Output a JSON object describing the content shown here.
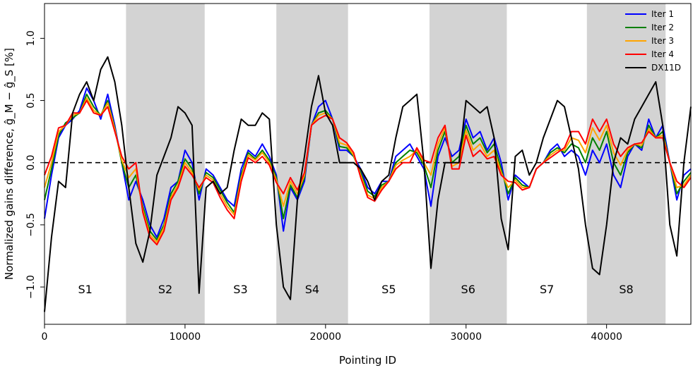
{
  "chart_data": {
    "type": "line",
    "title": "",
    "xlabel": "Pointing ID",
    "ylabel": "Normalized gains difference, ĝ_M − ĝ_S [%]",
    "xlim": [
      0,
      46000
    ],
    "ylim": [
      -1.3,
      1.28
    ],
    "xticks": [
      0,
      10000,
      20000,
      30000,
      40000
    ],
    "xtick_labels": [
      "0",
      "10000",
      "20000",
      "30000",
      "40000"
    ],
    "yticks": [
      -1.0,
      -0.5,
      0.0,
      0.5,
      1.0
    ],
    "ytick_labels": [
      "−1.0",
      "−0.5",
      "0.0",
      "0.5",
      "1.0"
    ],
    "grid": false,
    "legend_position": "top-right",
    "reference_line": {
      "y": 0.0,
      "style": "dashed",
      "color": "#000000"
    },
    "segments": [
      {
        "label": "S1",
        "x0": 0,
        "x1": 5800,
        "shaded": false
      },
      {
        "label": "S2",
        "x0": 5800,
        "x1": 11400,
        "shaded": true
      },
      {
        "label": "S3",
        "x0": 11400,
        "x1": 16500,
        "shaded": false
      },
      {
        "label": "S4",
        "x0": 16500,
        "x1": 21600,
        "shaded": true
      },
      {
        "label": "S5",
        "x0": 21600,
        "x1": 27400,
        "shaded": false
      },
      {
        "label": "S6",
        "x0": 27400,
        "x1": 32900,
        "shaded": true
      },
      {
        "label": "S7",
        "x0": 32900,
        "x1": 38600,
        "shaded": false
      },
      {
        "label": "S8",
        "x0": 38600,
        "x1": 44200,
        "shaded": true
      }
    ],
    "shade_color": "#d3d3d3",
    "x": [
      0,
      500,
      1000,
      1500,
      2000,
      2500,
      3000,
      3500,
      4000,
      4500,
      5000,
      5500,
      6000,
      6500,
      7000,
      7500,
      8000,
      8500,
      9000,
      9500,
      10000,
      10500,
      11000,
      11500,
      12000,
      12500,
      13000,
      13500,
      14000,
      14500,
      15000,
      15500,
      16000,
      16500,
      17000,
      17500,
      18000,
      18500,
      19000,
      19500,
      20000,
      20500,
      21000,
      21500,
      22000,
      22500,
      23000,
      23500,
      24000,
      24500,
      25000,
      25500,
      26000,
      26500,
      27000,
      27500,
      28000,
      28500,
      29000,
      29500,
      30000,
      30500,
      31000,
      31500,
      32000,
      32500,
      33000,
      33500,
      34000,
      34500,
      35000,
      35500,
      36000,
      36500,
      37000,
      37500,
      38000,
      38500,
      39000,
      39500,
      40000,
      40500,
      41000,
      41500,
      42000,
      42500,
      43000,
      43500,
      44000,
      44500,
      45000,
      45500,
      46000
    ],
    "series": [
      {
        "name": "Iter 1",
        "color": "#0000ff",
        "values": [
          -0.45,
          -0.1,
          0.2,
          0.3,
          0.35,
          0.42,
          0.6,
          0.5,
          0.35,
          0.55,
          0.3,
          0.0,
          -0.3,
          -0.15,
          -0.3,
          -0.5,
          -0.6,
          -0.45,
          -0.2,
          -0.15,
          0.1,
          0.0,
          -0.3,
          -0.05,
          -0.1,
          -0.2,
          -0.3,
          -0.35,
          -0.05,
          0.1,
          0.05,
          0.15,
          0.05,
          -0.1,
          -0.55,
          -0.2,
          -0.3,
          -0.15,
          0.3,
          0.45,
          0.5,
          0.35,
          0.1,
          0.1,
          0.05,
          -0.05,
          -0.2,
          -0.25,
          -0.15,
          -0.15,
          0.05,
          0.1,
          0.15,
          0.05,
          -0.05,
          -0.35,
          0.05,
          0.2,
          0.05,
          0.1,
          0.35,
          0.2,
          0.25,
          0.1,
          0.2,
          0.0,
          -0.3,
          -0.1,
          -0.15,
          -0.2,
          -0.05,
          0.0,
          0.1,
          0.15,
          0.05,
          0.1,
          0.05,
          -0.1,
          0.1,
          0.0,
          0.15,
          -0.1,
          -0.2,
          0.05,
          0.15,
          0.1,
          0.35,
          0.2,
          0.3,
          0.0,
          -0.3,
          -0.1,
          -0.05
        ]
      },
      {
        "name": "Iter 2",
        "color": "#008000",
        "values": [
          -0.3,
          -0.05,
          0.22,
          0.32,
          0.36,
          0.4,
          0.55,
          0.45,
          0.38,
          0.5,
          0.28,
          0.0,
          -0.2,
          -0.1,
          -0.35,
          -0.55,
          -0.62,
          -0.5,
          -0.25,
          -0.15,
          0.03,
          -0.05,
          -0.25,
          -0.08,
          -0.12,
          -0.22,
          -0.32,
          -0.4,
          -0.1,
          0.08,
          0.03,
          0.1,
          0.02,
          -0.12,
          -0.45,
          -0.18,
          -0.28,
          -0.12,
          0.3,
          0.4,
          0.42,
          0.35,
          0.13,
          0.12,
          0.05,
          -0.08,
          -0.23,
          -0.27,
          -0.18,
          -0.15,
          0.0,
          0.05,
          0.1,
          0.08,
          -0.02,
          -0.2,
          0.1,
          0.25,
          0.0,
          0.05,
          0.3,
          0.15,
          0.2,
          0.08,
          0.15,
          -0.05,
          -0.25,
          -0.12,
          -0.18,
          -0.2,
          -0.05,
          0.0,
          0.08,
          0.12,
          0.08,
          0.15,
          0.12,
          0.0,
          0.2,
          0.1,
          0.25,
          0.0,
          -0.1,
          0.08,
          0.15,
          0.12,
          0.3,
          0.2,
          0.25,
          0.0,
          -0.25,
          -0.15,
          -0.08
        ]
      },
      {
        "name": "Iter 3",
        "color": "#ffa500",
        "values": [
          -0.2,
          0.0,
          0.25,
          0.3,
          0.38,
          0.4,
          0.52,
          0.42,
          0.38,
          0.48,
          0.27,
          0.02,
          -0.12,
          -0.05,
          -0.38,
          -0.58,
          -0.64,
          -0.52,
          -0.28,
          -0.18,
          0.0,
          -0.08,
          -0.22,
          -0.1,
          -0.14,
          -0.25,
          -0.35,
          -0.42,
          -0.12,
          0.06,
          0.02,
          0.08,
          0.0,
          -0.14,
          -0.35,
          -0.15,
          -0.25,
          -0.1,
          0.3,
          0.38,
          0.4,
          0.35,
          0.16,
          0.14,
          0.06,
          -0.1,
          -0.26,
          -0.29,
          -0.2,
          -0.15,
          -0.02,
          0.02,
          0.05,
          0.1,
          0.0,
          -0.1,
          0.15,
          0.28,
          -0.03,
          0.0,
          0.26,
          0.1,
          0.15,
          0.05,
          0.1,
          -0.08,
          -0.2,
          -0.14,
          -0.2,
          -0.2,
          -0.05,
          0.0,
          0.06,
          0.1,
          0.1,
          0.2,
          0.18,
          0.08,
          0.28,
          0.18,
          0.3,
          0.08,
          -0.02,
          0.1,
          0.15,
          0.14,
          0.27,
          0.2,
          0.22,
          0.0,
          -0.2,
          -0.18,
          -0.1
        ]
      },
      {
        "name": "Iter 4",
        "color": "#ff0000",
        "values": [
          -0.1,
          0.05,
          0.28,
          0.3,
          0.4,
          0.4,
          0.5,
          0.4,
          0.38,
          0.45,
          0.25,
          0.05,
          -0.05,
          0.0,
          -0.4,
          -0.6,
          -0.66,
          -0.55,
          -0.3,
          -0.2,
          -0.03,
          -0.1,
          -0.2,
          -0.12,
          -0.16,
          -0.28,
          -0.38,
          -0.45,
          -0.15,
          0.04,
          0.0,
          0.05,
          -0.02,
          -0.16,
          -0.25,
          -0.12,
          -0.22,
          -0.08,
          0.3,
          0.35,
          0.38,
          0.35,
          0.2,
          0.16,
          0.08,
          -0.12,
          -0.28,
          -0.31,
          -0.22,
          -0.15,
          -0.05,
          0.0,
          0.0,
          0.12,
          0.02,
          0.0,
          0.2,
          0.3,
          -0.05,
          -0.05,
          0.22,
          0.05,
          0.1,
          0.03,
          0.05,
          -0.1,
          -0.15,
          -0.16,
          -0.22,
          -0.2,
          -0.05,
          0.0,
          0.04,
          0.08,
          0.12,
          0.25,
          0.25,
          0.15,
          0.35,
          0.25,
          0.35,
          0.15,
          0.05,
          0.12,
          0.15,
          0.16,
          0.25,
          0.2,
          0.2,
          0.0,
          -0.15,
          -0.2,
          -0.12
        ]
      },
      {
        "name": "DX11D",
        "color": "#000000",
        "values": [
          -1.2,
          -0.6,
          -0.15,
          -0.2,
          0.4,
          0.55,
          0.65,
          0.5,
          0.75,
          0.85,
          0.65,
          0.3,
          -0.2,
          -0.65,
          -0.8,
          -0.55,
          -0.1,
          0.05,
          0.2,
          0.45,
          0.4,
          0.3,
          -1.05,
          -0.2,
          -0.15,
          -0.25,
          -0.2,
          0.1,
          0.35,
          0.3,
          0.3,
          0.4,
          0.35,
          -0.5,
          -1.0,
          -1.1,
          -0.3,
          0.05,
          0.45,
          0.7,
          0.4,
          0.3,
          0.0,
          0.0,
          0.0,
          -0.05,
          -0.15,
          -0.3,
          -0.15,
          -0.1,
          0.2,
          0.45,
          0.5,
          0.55,
          0.0,
          -0.85,
          -0.3,
          0.0,
          0.0,
          0.0,
          0.5,
          0.45,
          0.4,
          0.45,
          0.2,
          -0.45,
          -0.7,
          0.05,
          0.1,
          -0.1,
          0.0,
          0.2,
          0.35,
          0.5,
          0.45,
          0.2,
          -0.05,
          -0.5,
          -0.85,
          -0.9,
          -0.5,
          0.0,
          0.2,
          0.15,
          0.35,
          0.45,
          0.55,
          0.65,
          0.3,
          -0.5,
          -0.75,
          0.0,
          0.45
        ]
      }
    ]
  }
}
